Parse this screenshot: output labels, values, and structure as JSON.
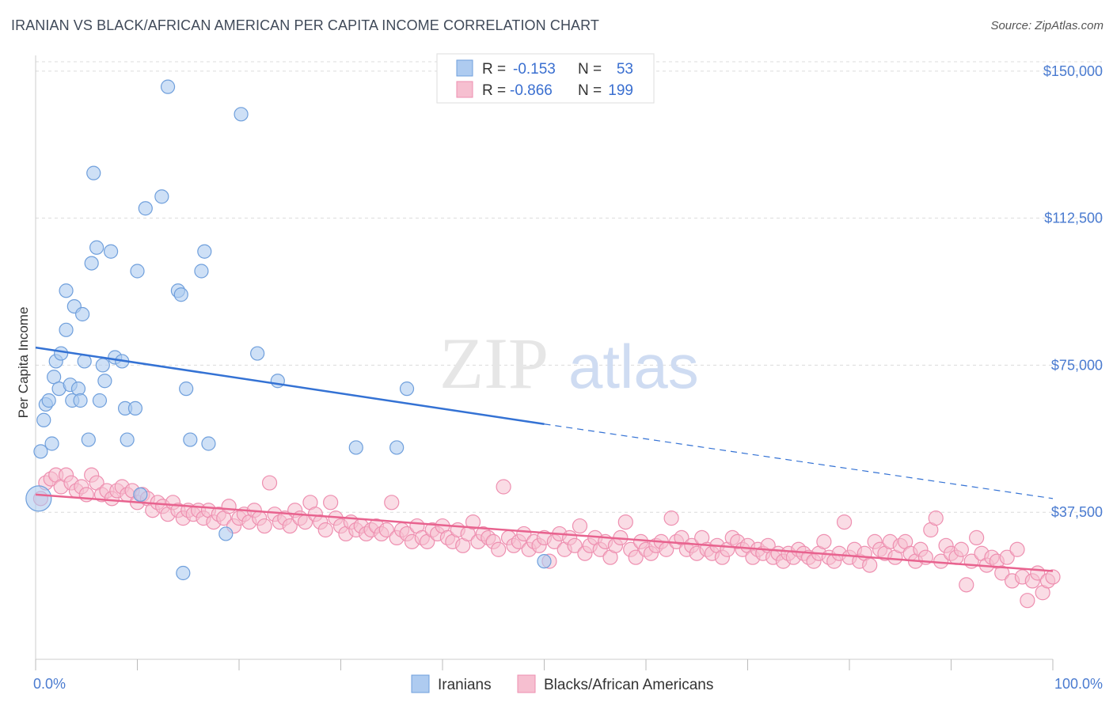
{
  "title": "IRANIAN VS BLACK/AFRICAN AMERICAN PER CAPITA INCOME CORRELATION CHART",
  "source": "Source: ZipAtlas.com",
  "watermark": {
    "zip": "ZIP",
    "atlas": "atlas"
  },
  "colors": {
    "blue_fill": "#aecbf0",
    "blue_stroke": "#6f9fdc",
    "blue_line": "#3472d4",
    "pink_fill": "#f6bfd0",
    "pink_stroke": "#ee8fb0",
    "pink_line": "#e8638f",
    "tick_text": "#4a7bd0",
    "grid": "#dcdcdc"
  },
  "legend": {
    "rows": [
      {
        "r_label": "R =",
        "r_value": "-0.153",
        "n_label": "N =",
        "n_value": "53"
      },
      {
        "r_label": "R =",
        "r_value": "-0.866",
        "n_label": "N =",
        "n_value": "199"
      }
    ]
  },
  "chart_data": {
    "type": "scatter",
    "xlabel": "",
    "ylabel": "Per Capita Income",
    "x_ticks": [
      "0.0%",
      "100.0%"
    ],
    "y_ticks": [
      "$37,500",
      "$75,000",
      "$112,500",
      "$150,000"
    ],
    "y_tick_values": [
      37500,
      75000,
      112500,
      150000
    ],
    "xlim": [
      0,
      100
    ],
    "ylim": [
      0,
      154000
    ],
    "grid": true,
    "legend_position": "top-center",
    "series": [
      {
        "name": "Iranians",
        "trend": {
          "x0": 0,
          "y0": 79500,
          "x1": 50,
          "y1": 60000,
          "x_dash_end": 100,
          "y_dash_end": 41000
        },
        "points": [
          [
            0.3,
            41000
          ],
          [
            0.5,
            53000
          ],
          [
            0.8,
            61000
          ],
          [
            1.0,
            65000
          ],
          [
            1.3,
            66000
          ],
          [
            1.6,
            55000
          ],
          [
            1.8,
            72000
          ],
          [
            2.0,
            76000
          ],
          [
            2.3,
            69000
          ],
          [
            2.5,
            78000
          ],
          [
            3.0,
            84000
          ],
          [
            3.0,
            94000
          ],
          [
            3.4,
            70000
          ],
          [
            3.6,
            66000
          ],
          [
            3.8,
            90000
          ],
          [
            4.2,
            69000
          ],
          [
            4.4,
            66000
          ],
          [
            4.6,
            88000
          ],
          [
            4.8,
            76000
          ],
          [
            5.2,
            56000
          ],
          [
            5.5,
            101000
          ],
          [
            5.7,
            124000
          ],
          [
            6.0,
            105000
          ],
          [
            6.3,
            66000
          ],
          [
            6.6,
            75000
          ],
          [
            6.8,
            71000
          ],
          [
            7.4,
            104000
          ],
          [
            7.8,
            77000
          ],
          [
            8.5,
            76000
          ],
          [
            8.8,
            64000
          ],
          [
            9.0,
            56000
          ],
          [
            9.8,
            64000
          ],
          [
            10.0,
            99000
          ],
          [
            10.3,
            42000
          ],
          [
            10.8,
            115000
          ],
          [
            12.4,
            118000
          ],
          [
            13.0,
            146000
          ],
          [
            14.0,
            94000
          ],
          [
            14.3,
            93000
          ],
          [
            14.5,
            22000
          ],
          [
            14.8,
            69000
          ],
          [
            15.2,
            56000
          ],
          [
            16.3,
            99000
          ],
          [
            16.6,
            104000
          ],
          [
            17.0,
            55000
          ],
          [
            18.7,
            32000
          ],
          [
            20.2,
            139000
          ],
          [
            21.8,
            78000
          ],
          [
            23.8,
            71000
          ],
          [
            31.5,
            54000
          ],
          [
            35.5,
            54000
          ],
          [
            36.5,
            69000
          ],
          [
            50.0,
            25000
          ]
        ]
      },
      {
        "name": "Blacks/African Americans",
        "trend": {
          "x0": 0,
          "y0": 42000,
          "x1": 100,
          "y1": 22500
        },
        "points": [
          [
            0.5,
            41000
          ],
          [
            1.0,
            45000
          ],
          [
            1.5,
            46000
          ],
          [
            2.0,
            47000
          ],
          [
            2.5,
            44000
          ],
          [
            3.0,
            47000
          ],
          [
            3.5,
            45000
          ],
          [
            4.0,
            43000
          ],
          [
            4.5,
            44000
          ],
          [
            5.0,
            42000
          ],
          [
            5.5,
            47000
          ],
          [
            6.0,
            45000
          ],
          [
            6.5,
            42000
          ],
          [
            7.0,
            43000
          ],
          [
            7.5,
            41000
          ],
          [
            8.0,
            43000
          ],
          [
            8.5,
            44000
          ],
          [
            9.0,
            42000
          ],
          [
            9.5,
            43000
          ],
          [
            10.0,
            40000
          ],
          [
            10.5,
            42000
          ],
          [
            11.0,
            41000
          ],
          [
            11.5,
            38000
          ],
          [
            12.0,
            40000
          ],
          [
            12.5,
            39000
          ],
          [
            13.0,
            37000
          ],
          [
            13.5,
            40000
          ],
          [
            14.0,
            38000
          ],
          [
            14.5,
            36000
          ],
          [
            15.0,
            38000
          ],
          [
            15.5,
            37000
          ],
          [
            16.0,
            38000
          ],
          [
            16.5,
            36000
          ],
          [
            17.0,
            38000
          ],
          [
            17.5,
            35000
          ],
          [
            18.0,
            37000
          ],
          [
            18.5,
            36000
          ],
          [
            19.0,
            39000
          ],
          [
            19.5,
            34000
          ],
          [
            20.0,
            36000
          ],
          [
            20.5,
            37000
          ],
          [
            21.0,
            35000
          ],
          [
            21.5,
            38000
          ],
          [
            22.0,
            36000
          ],
          [
            22.5,
            34000
          ],
          [
            23.0,
            45000
          ],
          [
            23.5,
            37000
          ],
          [
            24.0,
            35000
          ],
          [
            24.5,
            36000
          ],
          [
            25.0,
            34000
          ],
          [
            25.5,
            38000
          ],
          [
            26.0,
            36000
          ],
          [
            26.5,
            35000
          ],
          [
            27.0,
            40000
          ],
          [
            27.5,
            37000
          ],
          [
            28.0,
            35000
          ],
          [
            28.5,
            33000
          ],
          [
            29.0,
            40000
          ],
          [
            29.5,
            36000
          ],
          [
            30.0,
            34000
          ],
          [
            30.5,
            32000
          ],
          [
            31.0,
            35000
          ],
          [
            31.5,
            33000
          ],
          [
            32.0,
            34000
          ],
          [
            32.5,
            32000
          ],
          [
            33.0,
            33000
          ],
          [
            33.5,
            34000
          ],
          [
            34.0,
            32000
          ],
          [
            34.5,
            33000
          ],
          [
            35.0,
            40000
          ],
          [
            35.5,
            31000
          ],
          [
            36.0,
            33000
          ],
          [
            36.5,
            32000
          ],
          [
            37.0,
            30000
          ],
          [
            37.5,
            34000
          ],
          [
            38.0,
            31000
          ],
          [
            38.5,
            30000
          ],
          [
            39.0,
            33000
          ],
          [
            39.5,
            32000
          ],
          [
            40.0,
            34000
          ],
          [
            40.5,
            31000
          ],
          [
            41.0,
            30000
          ],
          [
            41.5,
            33000
          ],
          [
            42.0,
            29000
          ],
          [
            42.5,
            32000
          ],
          [
            43.0,
            35000
          ],
          [
            43.5,
            30000
          ],
          [
            44.0,
            32000
          ],
          [
            44.5,
            31000
          ],
          [
            45.0,
            30000
          ],
          [
            45.5,
            28000
          ],
          [
            46.0,
            44000
          ],
          [
            46.5,
            31000
          ],
          [
            47.0,
            29000
          ],
          [
            47.5,
            30000
          ],
          [
            48.0,
            32000
          ],
          [
            48.5,
            28000
          ],
          [
            49.0,
            30000
          ],
          [
            49.5,
            29000
          ],
          [
            50.0,
            31000
          ],
          [
            50.5,
            25000
          ],
          [
            51.0,
            30000
          ],
          [
            51.5,
            32000
          ],
          [
            52.0,
            28000
          ],
          [
            52.5,
            31000
          ],
          [
            53.0,
            29000
          ],
          [
            53.5,
            34000
          ],
          [
            54.0,
            27000
          ],
          [
            54.5,
            29000
          ],
          [
            55.0,
            31000
          ],
          [
            55.5,
            28000
          ],
          [
            56.0,
            30000
          ],
          [
            56.5,
            26000
          ],
          [
            57.0,
            29000
          ],
          [
            57.5,
            31000
          ],
          [
            58.0,
            35000
          ],
          [
            58.5,
            28000
          ],
          [
            59.0,
            26000
          ],
          [
            59.5,
            30000
          ],
          [
            60.0,
            28000
          ],
          [
            60.5,
            27000
          ],
          [
            61.0,
            29000
          ],
          [
            61.5,
            30000
          ],
          [
            62.0,
            28000
          ],
          [
            62.5,
            36000
          ],
          [
            63.0,
            30000
          ],
          [
            63.5,
            31000
          ],
          [
            64.0,
            28000
          ],
          [
            64.5,
            29000
          ],
          [
            65.0,
            27000
          ],
          [
            65.5,
            31000
          ],
          [
            66.0,
            28000
          ],
          [
            66.5,
            27000
          ],
          [
            67.0,
            29000
          ],
          [
            67.5,
            26000
          ],
          [
            68.0,
            28000
          ],
          [
            68.5,
            31000
          ],
          [
            69.0,
            30000
          ],
          [
            69.5,
            28000
          ],
          [
            70.0,
            29000
          ],
          [
            70.5,
            26000
          ],
          [
            71.0,
            28000
          ],
          [
            71.5,
            27000
          ],
          [
            72.0,
            29000
          ],
          [
            72.5,
            26000
          ],
          [
            73.0,
            27000
          ],
          [
            73.5,
            25000
          ],
          [
            74.0,
            27000
          ],
          [
            74.5,
            26000
          ],
          [
            75.0,
            28000
          ],
          [
            75.5,
            27000
          ],
          [
            76.0,
            26000
          ],
          [
            76.5,
            25000
          ],
          [
            77.0,
            27000
          ],
          [
            77.5,
            30000
          ],
          [
            78.0,
            26000
          ],
          [
            78.5,
            25000
          ],
          [
            79.0,
            27000
          ],
          [
            79.5,
            35000
          ],
          [
            80.0,
            26000
          ],
          [
            80.5,
            28000
          ],
          [
            81.0,
            25000
          ],
          [
            81.5,
            27000
          ],
          [
            82.0,
            24000
          ],
          [
            82.5,
            30000
          ],
          [
            83.0,
            28000
          ],
          [
            83.5,
            27000
          ],
          [
            84.0,
            30000
          ],
          [
            84.5,
            26000
          ],
          [
            85.0,
            29000
          ],
          [
            85.5,
            30000
          ],
          [
            86.0,
            27000
          ],
          [
            86.5,
            25000
          ],
          [
            87.0,
            28000
          ],
          [
            87.5,
            26000
          ],
          [
            88.0,
            33000
          ],
          [
            88.5,
            36000
          ],
          [
            89.0,
            25000
          ],
          [
            89.5,
            29000
          ],
          [
            90.0,
            27000
          ],
          [
            90.5,
            26000
          ],
          [
            91.0,
            28000
          ],
          [
            91.5,
            19000
          ],
          [
            92.0,
            25000
          ],
          [
            92.5,
            31000
          ],
          [
            93.0,
            27000
          ],
          [
            93.5,
            24000
          ],
          [
            94.0,
            26000
          ],
          [
            94.5,
            25000
          ],
          [
            95.0,
            22000
          ],
          [
            95.5,
            26000
          ],
          [
            96.0,
            20000
          ],
          [
            96.5,
            28000
          ],
          [
            97.0,
            21000
          ],
          [
            97.5,
            15000
          ],
          [
            98.0,
            20000
          ],
          [
            98.5,
            22000
          ],
          [
            99.0,
            17000
          ],
          [
            99.5,
            20000
          ],
          [
            100.0,
            21000
          ]
        ]
      }
    ]
  }
}
